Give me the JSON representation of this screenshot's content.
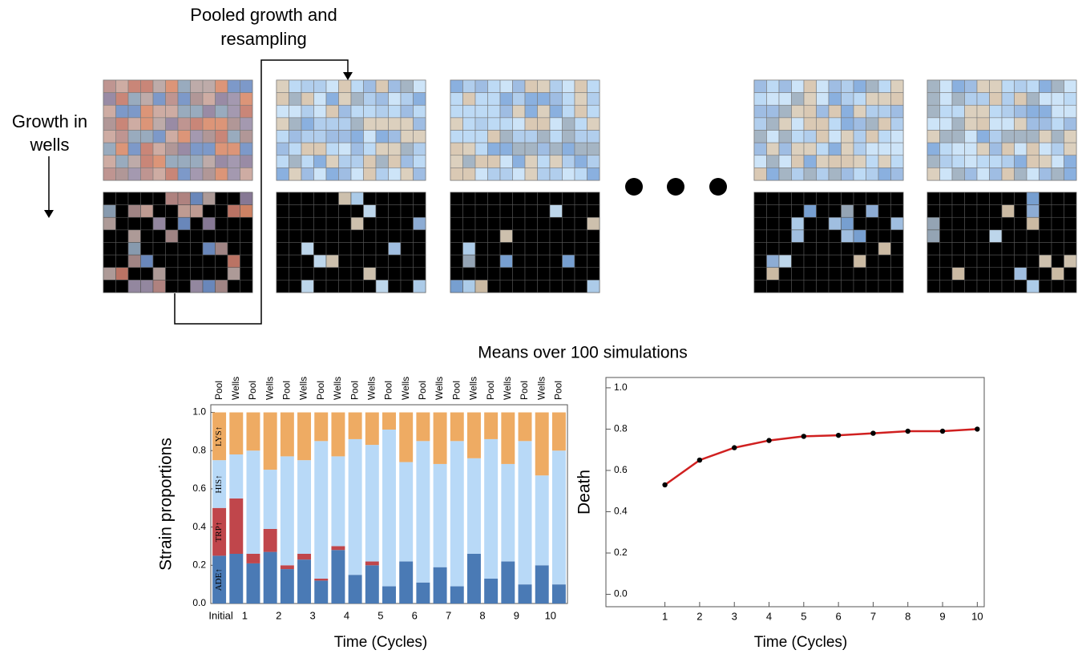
{
  "diagram": {
    "pool_label": [
      "Pooled growth and",
      "resampling"
    ],
    "growth_label": [
      "Growth in",
      "wells"
    ]
  },
  "figure_title": "Means over 100 simulations",
  "chart_data": [
    {
      "type": "stacked-bar",
      "categories": [
        "Pool",
        "Wells",
        "Pool",
        "Wells",
        "Pool",
        "Wells",
        "Pool",
        "Wells",
        "Pool",
        "Wells",
        "Pool",
        "Wells",
        "Pool",
        "Wells",
        "Pool",
        "Wells",
        "Pool",
        "Wells",
        "Pool",
        "Wells",
        "Pool"
      ],
      "group_labels": [
        "Initial",
        "1",
        "2",
        "3",
        "4",
        "5",
        "6",
        "7",
        "8",
        "9",
        "10"
      ],
      "series": [
        {
          "name": "ADE↑",
          "color": "#4a7ab5",
          "values": [
            0.25,
            0.26,
            0.21,
            0.27,
            0.18,
            0.23,
            0.12,
            0.28,
            0.15,
            0.2,
            0.09,
            0.22,
            0.11,
            0.19,
            0.09,
            0.26,
            0.13,
            0.22,
            0.1,
            0.2,
            0.1
          ]
        },
        {
          "name": "TRP↑",
          "color": "#c0464b",
          "values": [
            0.25,
            0.29,
            0.05,
            0.12,
            0.02,
            0.03,
            0.01,
            0.02,
            0,
            0.02,
            0,
            0,
            0,
            0,
            0,
            0,
            0,
            0,
            0,
            0,
            0
          ]
        },
        {
          "name": "HIS↑",
          "color": "#b8d9f7",
          "values": [
            0.25,
            0.23,
            0.54,
            0.31,
            0.57,
            0.49,
            0.72,
            0.47,
            0.71,
            0.61,
            0.82,
            0.52,
            0.74,
            0.54,
            0.76,
            0.5,
            0.73,
            0.51,
            0.75,
            0.47,
            0.7
          ]
        },
        {
          "name": "LYS↑",
          "color": "#eeab63",
          "values": [
            0.25,
            0.22,
            0.2,
            0.3,
            0.23,
            0.25,
            0.15,
            0.23,
            0.14,
            0.17,
            0.09,
            0.26,
            0.15,
            0.27,
            0.15,
            0.24,
            0.14,
            0.27,
            0.15,
            0.33,
            0.2
          ]
        }
      ],
      "ylim": [
        0,
        1.04
      ],
      "yticks": [
        {
          "value": 0,
          "label": "0.0"
        },
        {
          "value": 0.2,
          "label": "0.2"
        },
        {
          "value": 0.4,
          "label": "0.4"
        },
        {
          "value": 0.6,
          "label": "0.6"
        },
        {
          "value": 0.8,
          "label": "0.8"
        },
        {
          "value": 1,
          "label": "1.0"
        }
      ],
      "y_label": "Strain proportions",
      "x_label": "Time (Cycles)"
    },
    {
      "type": "line",
      "x": [
        1,
        2,
        3,
        4,
        5,
        6,
        7,
        8,
        9,
        10
      ],
      "series": [
        {
          "color": "#d02020",
          "values": [
            0.53,
            0.65,
            0.71,
            0.745,
            0.765,
            0.77,
            0.78,
            0.79,
            0.79,
            0.8
          ]
        }
      ],
      "xlim": [
        -0.7,
        10.2
      ],
      "xticks": [
        1,
        2,
        3,
        4,
        5,
        6,
        7,
        8,
        9,
        10
      ],
      "ylim": [
        -0.06,
        1.05
      ],
      "yticks": [
        {
          "value": 0,
          "label": "0.0"
        },
        {
          "value": 0.2,
          "label": "0.2"
        },
        {
          "value": 0.4,
          "label": "0.4"
        },
        {
          "value": 0.6,
          "label": "0.6"
        },
        {
          "value": 0.8,
          "label": "0.8"
        },
        {
          "value": 1,
          "label": "1.0"
        }
      ],
      "y_label": "Death",
      "x_label": "Time (Cycles)"
    }
  ]
}
